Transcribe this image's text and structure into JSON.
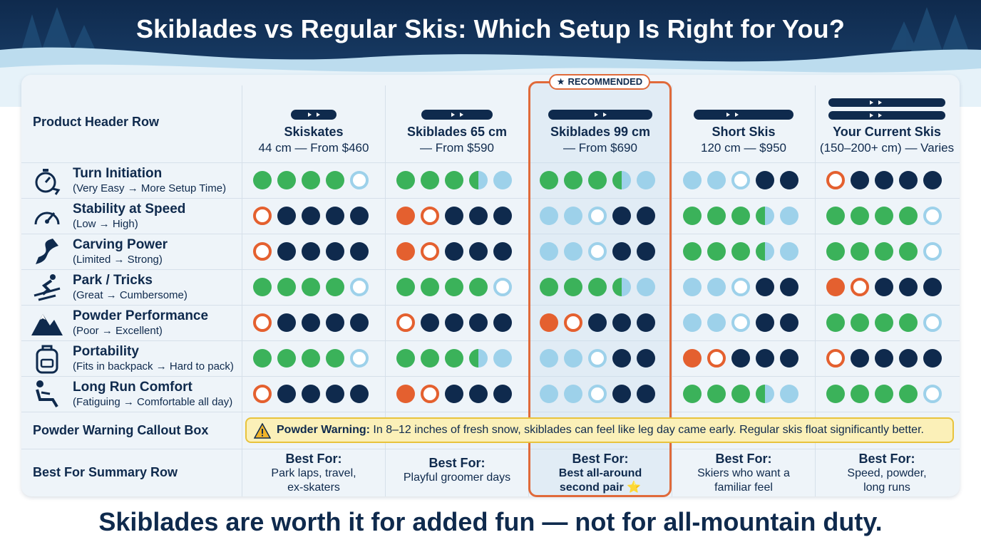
{
  "title": "Skiblades vs Regular Skis: Which Setup Is Right for You?",
  "footer": "Skiblades are worth it for added fun — not for all-mountain duty.",
  "colors": {
    "navy": "#0f2a4d",
    "green": "#3bb25a",
    "light_blue": "#9dd1ea",
    "orange": "#e4602f",
    "accent_border": "#e06a3a",
    "warning_bg": "#fbf0b8"
  },
  "row_labels": {
    "product_header": "Product Header Row",
    "powder_warning": "Powder Warning Callout Box",
    "best_for": "Best For Summary Row"
  },
  "recommended_badge": "RECOMMENDED",
  "products": [
    {
      "name": "Skiskates",
      "sub": "44 cm — From $460",
      "best_for": "Park laps, travel,\nex-skaters",
      "recommended": false
    },
    {
      "name": "Skiblades 65 cm",
      "sub": "— From $590",
      "best_for": "Playful groomer days",
      "recommended": false
    },
    {
      "name": "Skiblades 99 cm",
      "sub": "— From $690",
      "best_for": "Best all-around\nsecond pair ⭐",
      "recommended": true
    },
    {
      "name": "Short Skis",
      "sub": "120 cm — $950",
      "best_for": "Skiers who want a\nfamiliar feel",
      "recommended": false
    },
    {
      "name": "Your Current Skis",
      "sub": "(150–200+ cm) — Varies",
      "best_for": "Speed, powder,\nlong runs",
      "recommended": false
    }
  ],
  "best_for_heading": "Best For:",
  "criteria": [
    {
      "name": "Turn Initiation",
      "range": "(Very Easy → More Setup Time)",
      "icon": "stopwatch-icon",
      "ratings": [
        [
          "G",
          "G",
          "G",
          "G",
          "Lo"
        ],
        [
          "G",
          "G",
          "G",
          "GL",
          "L"
        ],
        [
          "G",
          "G",
          "G",
          "GL",
          "L"
        ],
        [
          "L",
          "L",
          "Lo",
          "N",
          "N"
        ],
        [
          "Oo",
          "N",
          "N",
          "N",
          "N"
        ]
      ]
    },
    {
      "name": "Stability at Speed",
      "range": "(Low → High)",
      "icon": "speedometer-icon",
      "ratings": [
        [
          "Oo",
          "N",
          "N",
          "N",
          "N"
        ],
        [
          "O",
          "Oo",
          "N",
          "N",
          "N"
        ],
        [
          "L",
          "L",
          "Lo",
          "N",
          "N"
        ],
        [
          "G",
          "G",
          "G",
          "GL",
          "L"
        ],
        [
          "G",
          "G",
          "G",
          "G",
          "Lo"
        ]
      ]
    },
    {
      "name": "Carving Power",
      "range": "(Limited → Strong)",
      "icon": "carve-icon",
      "ratings": [
        [
          "Oo",
          "N",
          "N",
          "N",
          "N"
        ],
        [
          "O",
          "Oo",
          "N",
          "N",
          "N"
        ],
        [
          "L",
          "L",
          "Lo",
          "N",
          "N"
        ],
        [
          "G",
          "G",
          "G",
          "GL",
          "L"
        ],
        [
          "G",
          "G",
          "G",
          "G",
          "Lo"
        ]
      ]
    },
    {
      "name": "Park / Tricks",
      "range": "(Great → Cumbersome)",
      "icon": "skier-icon",
      "ratings": [
        [
          "G",
          "G",
          "G",
          "G",
          "Lo"
        ],
        [
          "G",
          "G",
          "G",
          "G",
          "Lo"
        ],
        [
          "G",
          "G",
          "G",
          "GL",
          "L"
        ],
        [
          "L",
          "L",
          "Lo",
          "N",
          "N"
        ],
        [
          "O",
          "Oo",
          "N",
          "N",
          "N"
        ]
      ]
    },
    {
      "name": "Powder Performance",
      "range": "(Poor → Excellent)",
      "icon": "mountain-icon",
      "ratings": [
        [
          "Oo",
          "N",
          "N",
          "N",
          "N"
        ],
        [
          "Oo",
          "N",
          "N",
          "N",
          "N"
        ],
        [
          "O",
          "Oo",
          "N",
          "N",
          "N"
        ],
        [
          "L",
          "L",
          "Lo",
          "N",
          "N"
        ],
        [
          "G",
          "G",
          "G",
          "G",
          "Lo"
        ]
      ]
    },
    {
      "name": "Portability",
      "range": "(Fits in backpack → Hard to pack)",
      "icon": "backpack-icon",
      "ratings": [
        [
          "G",
          "G",
          "G",
          "G",
          "Lo"
        ],
        [
          "G",
          "G",
          "G",
          "GL",
          "L"
        ],
        [
          "L",
          "L",
          "Lo",
          "N",
          "N"
        ],
        [
          "O",
          "Oo",
          "N",
          "N",
          "N"
        ],
        [
          "Oo",
          "N",
          "N",
          "N",
          "N"
        ]
      ]
    },
    {
      "name": "Long Run Comfort",
      "range": "(Fatiguing → Comfortable all day)",
      "icon": "seat-icon",
      "ratings": [
        [
          "Oo",
          "N",
          "N",
          "N",
          "N"
        ],
        [
          "O",
          "Oo",
          "N",
          "N",
          "N"
        ],
        [
          "L",
          "L",
          "Lo",
          "N",
          "N"
        ],
        [
          "G",
          "G",
          "G",
          "GL",
          "L"
        ],
        [
          "G",
          "G",
          "G",
          "G",
          "Lo"
        ]
      ]
    }
  ],
  "warning": {
    "label": "Powder Warning:",
    "text": " In 8–12 inches of fresh snow, skiblades can feel like leg day came early. Regular skis float significantly better."
  }
}
